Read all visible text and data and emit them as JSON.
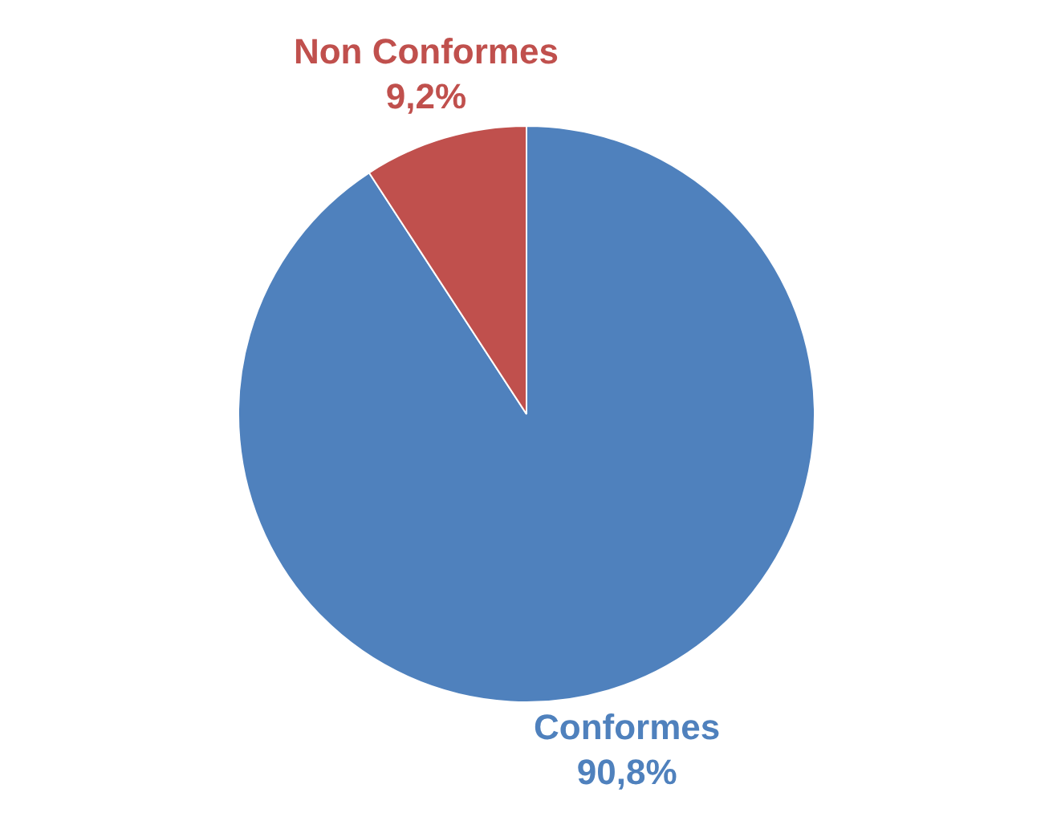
{
  "chart_data": {
    "type": "pie",
    "categories": [
      "Conformes",
      "Non Conformes"
    ],
    "values": [
      90.8,
      9.2
    ],
    "colors": [
      "#4f81bd",
      "#c0504d"
    ],
    "value_labels": [
      "90,8%",
      "9,2%"
    ],
    "legend": false
  }
}
